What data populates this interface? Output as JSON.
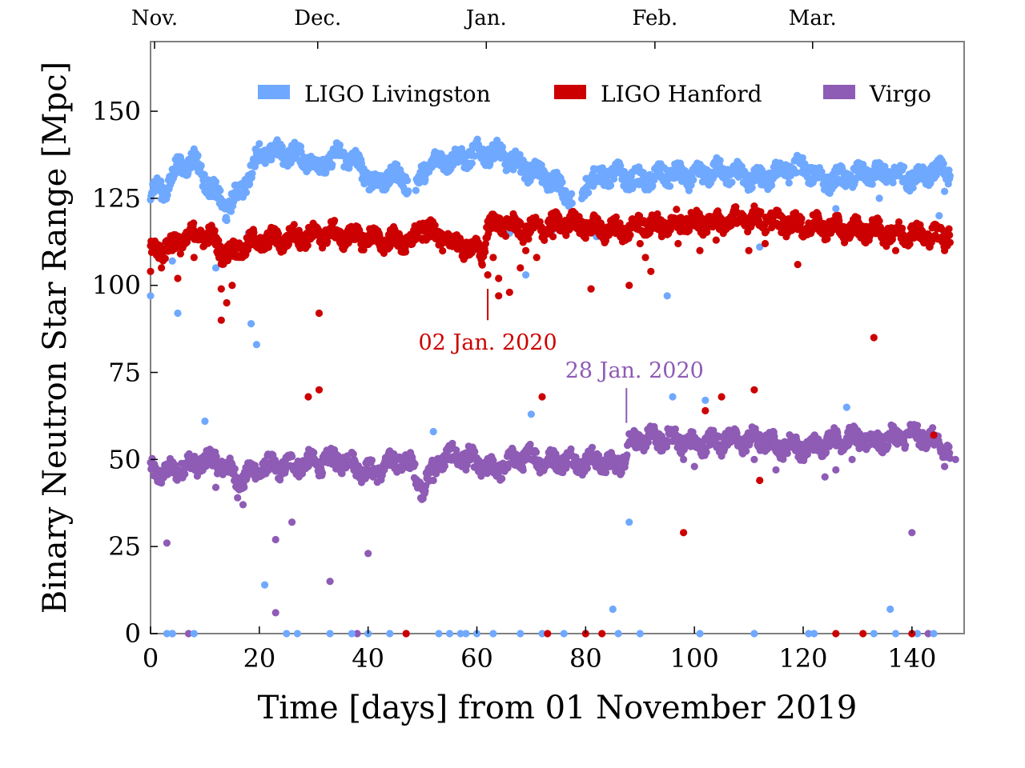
{
  "chart_data": {
    "type": "scatter",
    "xlabel": "Time [days] from 01 November 2019",
    "ylabel": "Binary Neutron Star Range [Mpc]",
    "xlim": [
      0,
      150
    ],
    "ylim": [
      0,
      170
    ],
    "x_ticks": [
      0,
      20,
      40,
      60,
      80,
      100,
      120,
      140
    ],
    "y_ticks": [
      0,
      25,
      50,
      75,
      100,
      125,
      150
    ],
    "top_axis": {
      "labels": [
        {
          "label": "Nov.",
          "day": 0
        },
        {
          "label": "Dec.",
          "day": 30
        },
        {
          "label": "Jan.",
          "day": 61
        },
        {
          "label": "Feb.",
          "day": 92
        },
        {
          "label": "Mar.",
          "day": 121
        }
      ]
    },
    "legend_position": "top",
    "grid": false,
    "series": [
      {
        "name": "LIGO Livingston",
        "color": "#6fa8ff",
        "baseline": [
          [
            0,
            127
          ],
          [
            3,
            128
          ],
          [
            5,
            134
          ],
          [
            8,
            136
          ],
          [
            11,
            128
          ],
          [
            14,
            122
          ],
          [
            16,
            126
          ],
          [
            18,
            131
          ],
          [
            20,
            138
          ],
          [
            25,
            138
          ],
          [
            28,
            137
          ],
          [
            31,
            134
          ],
          [
            33,
            136
          ],
          [
            35,
            138
          ],
          [
            38,
            135
          ],
          [
            40,
            131
          ],
          [
            42,
            129
          ],
          [
            44,
            132
          ],
          [
            47,
            130
          ],
          [
            49,
            128
          ],
          [
            50,
            133
          ],
          [
            53,
            136
          ],
          [
            56,
            136
          ],
          [
            60,
            138
          ],
          [
            64,
            138
          ],
          [
            67,
            135
          ],
          [
            70,
            133
          ],
          [
            74,
            130
          ],
          [
            77,
            125
          ],
          [
            79,
            124
          ],
          [
            80,
            130
          ],
          [
            85,
            132
          ],
          [
            90,
            130
          ],
          [
            95,
            132
          ],
          [
            100,
            131
          ],
          [
            104,
            133
          ],
          [
            108,
            132
          ],
          [
            112,
            130
          ],
          [
            116,
            133
          ],
          [
            120,
            134
          ],
          [
            124,
            130
          ],
          [
            128,
            131
          ],
          [
            132,
            132
          ],
          [
            136,
            132
          ],
          [
            140,
            131
          ],
          [
            144,
            133
          ],
          [
            147,
            132
          ]
        ],
        "gaps": [
          [
            47.5,
            48.8
          ],
          [
            77.5,
            79.2
          ]
        ],
        "outliers": [
          [
            0,
            97
          ],
          [
            5,
            92
          ],
          [
            4,
            107
          ],
          [
            10,
            61
          ],
          [
            12,
            105
          ],
          [
            18.5,
            89
          ],
          [
            19.5,
            83
          ],
          [
            18,
            115
          ],
          [
            21,
            14
          ],
          [
            25,
            0
          ],
          [
            27,
            0
          ],
          [
            33,
            0
          ],
          [
            37,
            0
          ],
          [
            40,
            0
          ],
          [
            42,
            112
          ],
          [
            44,
            0
          ],
          [
            47,
            0
          ],
          [
            52,
            58
          ],
          [
            53,
            0
          ],
          [
            55,
            0
          ],
          [
            57,
            0
          ],
          [
            58,
            0
          ],
          [
            60,
            0
          ],
          [
            63,
            0
          ],
          [
            66,
            115
          ],
          [
            68,
            0
          ],
          [
            69,
            103
          ],
          [
            70,
            63
          ],
          [
            72,
            0
          ],
          [
            74,
            116
          ],
          [
            76,
            0
          ],
          [
            80,
            0
          ],
          [
            82,
            114
          ],
          [
            85,
            7
          ],
          [
            86,
            0
          ],
          [
            88,
            32
          ],
          [
            90,
            0
          ],
          [
            95,
            97
          ],
          [
            96,
            68
          ],
          [
            101,
            0
          ],
          [
            102,
            67
          ],
          [
            111,
            0
          ],
          [
            112,
            111
          ],
          [
            121,
            0
          ],
          [
            122,
            0
          ],
          [
            126,
            122
          ],
          [
            128,
            65
          ],
          [
            133,
            0
          ],
          [
            134,
            125
          ],
          [
            136,
            7
          ],
          [
            137,
            0
          ],
          [
            141,
            0
          ],
          [
            144,
            0
          ],
          [
            145,
            120
          ],
          [
            146,
            127
          ],
          [
            3,
            0
          ],
          [
            4,
            0
          ],
          [
            8,
            0
          ]
        ]
      },
      {
        "name": "LIGO Hanford",
        "color": "#cc0000",
        "baseline": [
          [
            0,
            110
          ],
          [
            3,
            111
          ],
          [
            6,
            113
          ],
          [
            9,
            115
          ],
          [
            11,
            114
          ],
          [
            13,
            110
          ],
          [
            15,
            109
          ],
          [
            18,
            112
          ],
          [
            21,
            113
          ],
          [
            24,
            113
          ],
          [
            27,
            114
          ],
          [
            30,
            114
          ],
          [
            33,
            115
          ],
          [
            36,
            114
          ],
          [
            39,
            114
          ],
          [
            42,
            113
          ],
          [
            45,
            113
          ],
          [
            48,
            112
          ],
          [
            50,
            117
          ],
          [
            53,
            114
          ],
          [
            56,
            112
          ],
          [
            60,
            110
          ],
          [
            61,
            109
          ],
          [
            62,
            117
          ],
          [
            65,
            118
          ],
          [
            68,
            116
          ],
          [
            70,
            116
          ],
          [
            73,
            117
          ],
          [
            77,
            118
          ],
          [
            80,
            117
          ],
          [
            83,
            116
          ],
          [
            86,
            116
          ],
          [
            88,
            116
          ],
          [
            90,
            118
          ],
          [
            93,
            117
          ],
          [
            96,
            118
          ],
          [
            100,
            118
          ],
          [
            104,
            118
          ],
          [
            108,
            119
          ],
          [
            112,
            119
          ],
          [
            116,
            118
          ],
          [
            120,
            117
          ],
          [
            124,
            117
          ],
          [
            128,
            116
          ],
          [
            132,
            116
          ],
          [
            136,
            115
          ],
          [
            140,
            115
          ],
          [
            144,
            114
          ],
          [
            147,
            115
          ]
        ],
        "gaps": [],
        "outliers": [
          [
            0,
            104
          ],
          [
            2,
            105
          ],
          [
            4,
            110
          ],
          [
            5,
            102
          ],
          [
            8,
            108
          ],
          [
            13,
            99
          ],
          [
            14,
            95
          ],
          [
            13,
            90
          ],
          [
            15,
            100
          ],
          [
            20,
            112
          ],
          [
            29,
            68
          ],
          [
            31,
            70
          ],
          [
            31,
            92
          ],
          [
            35,
            112
          ],
          [
            44,
            111
          ],
          [
            47,
            0
          ],
          [
            50,
            113
          ],
          [
            55,
            112
          ],
          [
            59,
            112
          ],
          [
            62,
            103
          ],
          [
            63,
            108
          ],
          [
            64,
            102
          ],
          [
            64,
            97
          ],
          [
            66,
            98
          ],
          [
            68,
            105
          ],
          [
            69,
            110
          ],
          [
            71,
            108
          ],
          [
            72,
            68
          ],
          [
            73,
            0
          ],
          [
            74,
            114
          ],
          [
            80,
            0
          ],
          [
            81,
            99
          ],
          [
            83,
            0
          ],
          [
            88,
            100
          ],
          [
            90,
            112
          ],
          [
            91,
            108
          ],
          [
            92,
            104
          ],
          [
            94,
            114
          ],
          [
            97,
            112
          ],
          [
            98,
            29
          ],
          [
            101,
            110
          ],
          [
            102,
            64
          ],
          [
            104,
            113
          ],
          [
            105,
            68
          ],
          [
            110,
            110
          ],
          [
            111,
            70
          ],
          [
            112,
            44
          ],
          [
            113,
            112
          ],
          [
            119,
            106
          ],
          [
            126,
            0
          ],
          [
            131,
            0
          ],
          [
            133,
            85
          ],
          [
            137,
            110
          ],
          [
            140,
            0
          ],
          [
            144,
            57
          ],
          [
            146,
            110
          ]
        ],
        "annotation": {
          "text": "02 Jan. 2020",
          "day": 62
        }
      },
      {
        "name": "Virgo",
        "color": "#8e5bb5",
        "baseline": [
          [
            0,
            47
          ],
          [
            3,
            46
          ],
          [
            6,
            48
          ],
          [
            9,
            49
          ],
          [
            12,
            50
          ],
          [
            15,
            46
          ],
          [
            17,
            44
          ],
          [
            19,
            47
          ],
          [
            22,
            48
          ],
          [
            25,
            48
          ],
          [
            28,
            49
          ],
          [
            31,
            49
          ],
          [
            34,
            50
          ],
          [
            37,
            49
          ],
          [
            39,
            47
          ],
          [
            41,
            46
          ],
          [
            43,
            48
          ],
          [
            46,
            50
          ],
          [
            48,
            48
          ],
          [
            50,
            42
          ],
          [
            51,
            44
          ],
          [
            53,
            50
          ],
          [
            56,
            51
          ],
          [
            59,
            50
          ],
          [
            62,
            47
          ],
          [
            65,
            48
          ],
          [
            67,
            50
          ],
          [
            70,
            51
          ],
          [
            73,
            49
          ],
          [
            76,
            50
          ],
          [
            79,
            49
          ],
          [
            82,
            50
          ],
          [
            85,
            48
          ],
          [
            87,
            50
          ],
          [
            88,
            55
          ],
          [
            91,
            56
          ],
          [
            94,
            56
          ],
          [
            97,
            56
          ],
          [
            100,
            54
          ],
          [
            103,
            55
          ],
          [
            106,
            56
          ],
          [
            109,
            55
          ],
          [
            112,
            56
          ],
          [
            115,
            54
          ],
          [
            118,
            54
          ],
          [
            121,
            53
          ],
          [
            124,
            55
          ],
          [
            127,
            56
          ],
          [
            130,
            56
          ],
          [
            133,
            55
          ],
          [
            136,
            56
          ],
          [
            139,
            57
          ],
          [
            142,
            57
          ],
          [
            145,
            54
          ],
          [
            147,
            52
          ]
        ],
        "gaps": [],
        "outliers": [
          [
            3,
            26
          ],
          [
            4,
            0
          ],
          [
            7,
            0
          ],
          [
            12,
            42
          ],
          [
            16,
            39
          ],
          [
            17,
            37
          ],
          [
            23,
            27
          ],
          [
            23,
            6
          ],
          [
            26,
            32
          ],
          [
            33,
            15
          ],
          [
            38,
            0
          ],
          [
            40,
            23
          ],
          [
            52,
            44
          ],
          [
            58,
            47
          ],
          [
            98,
            50
          ],
          [
            100,
            48
          ],
          [
            105,
            51
          ],
          [
            111,
            50
          ],
          [
            115,
            47
          ],
          [
            124,
            45
          ],
          [
            126,
            47
          ],
          [
            129,
            50
          ],
          [
            140,
            29
          ],
          [
            143,
            0
          ],
          [
            146,
            48
          ],
          [
            148,
            50
          ]
        ],
        "annotation": {
          "text": "28 Jan. 2020",
          "day": 87.5
        }
      }
    ]
  }
}
